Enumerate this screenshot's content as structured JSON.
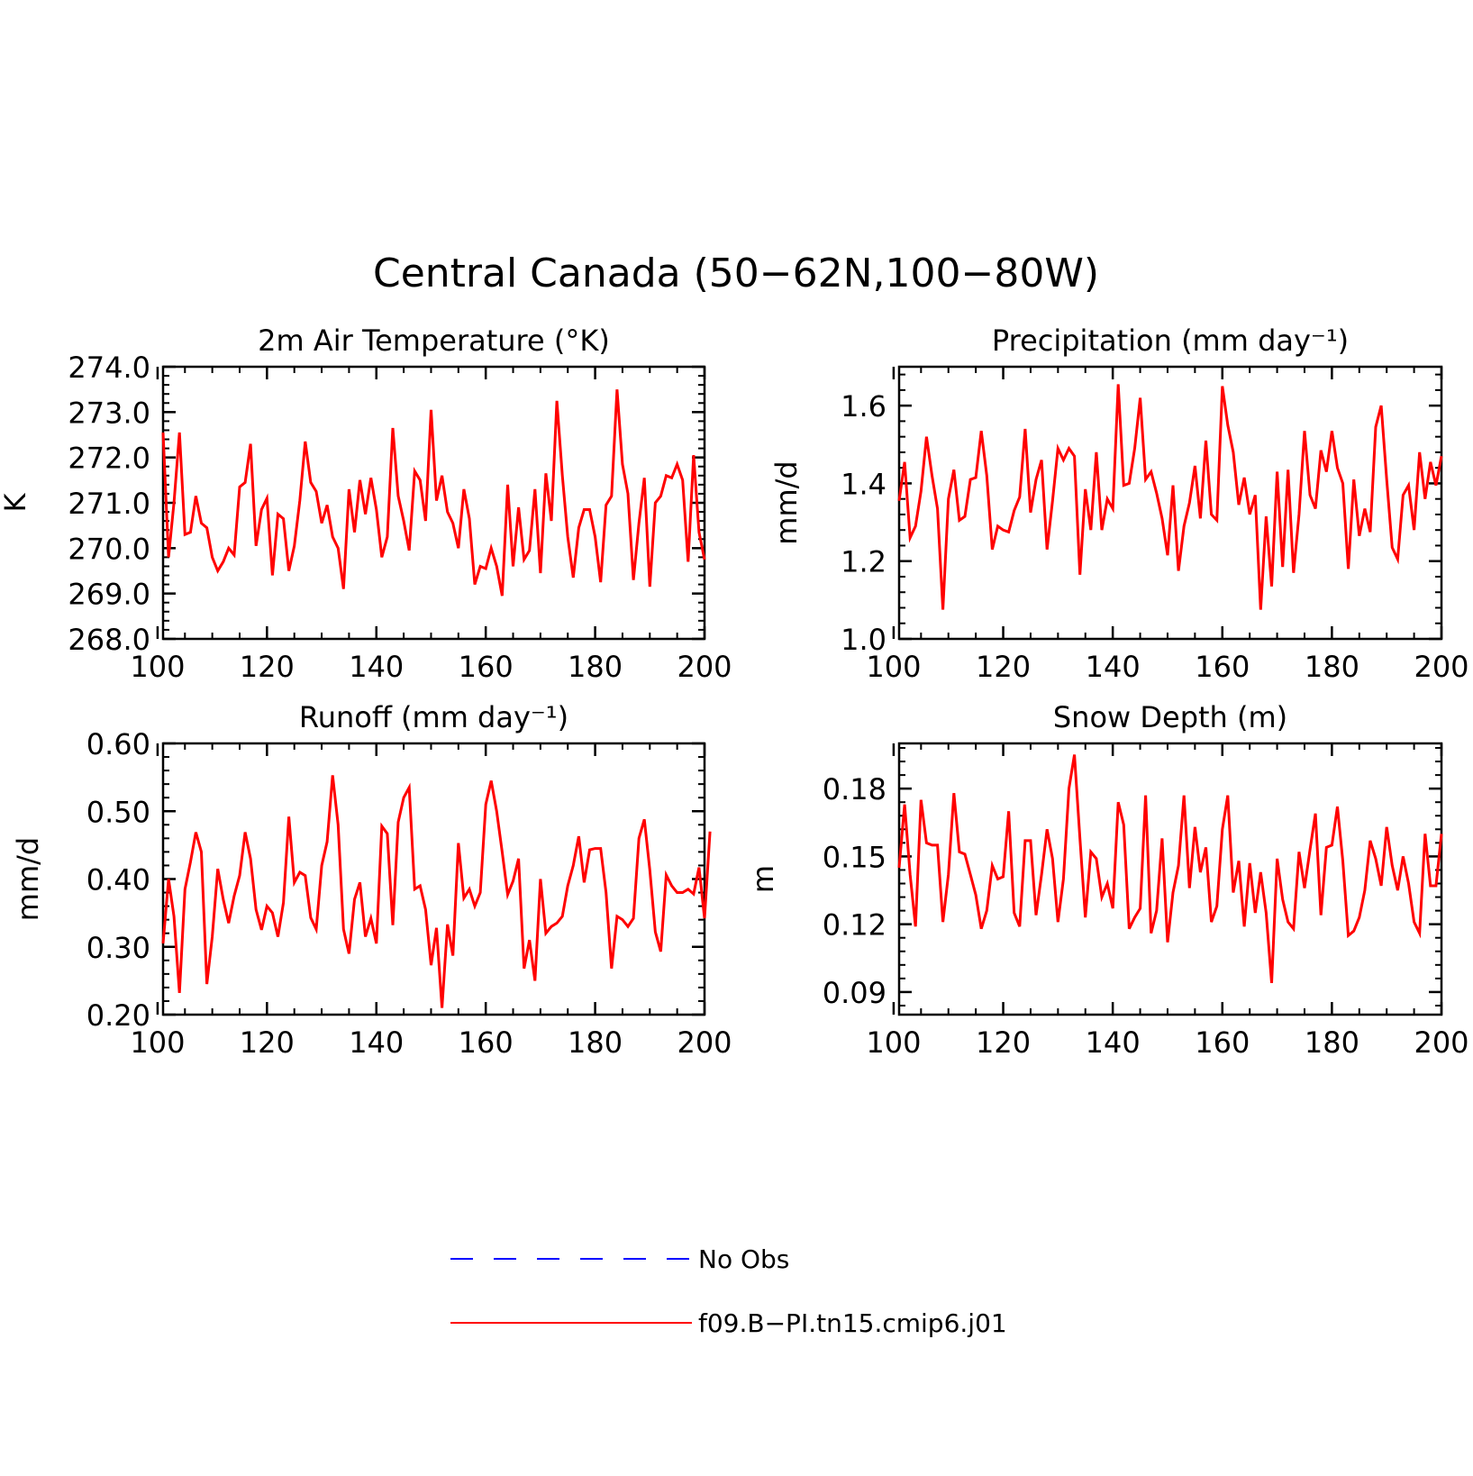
{
  "figure": {
    "title": "Central Canada (50−62N,100−80W)",
    "legend": {
      "entries": [
        {
          "label": "No Obs",
          "color": "#0000ff",
          "dash": true
        },
        {
          "label": "f09.B−PI.tn15.cmip6.j01",
          "color": "#ff0000",
          "dash": false
        }
      ]
    }
  },
  "chart_data": [
    {
      "type": "line",
      "title": "2m Air Temperature (°K)",
      "ylabel": "K",
      "xlim": [
        101,
        200
      ],
      "xticks": [
        100,
        120,
        140,
        160,
        180,
        200
      ],
      "ylim": [
        268.0,
        274.0
      ],
      "yticks": [
        268.0,
        269.0,
        270.0,
        271.0,
        272.0,
        273.0,
        274.0
      ],
      "ytick_labels": [
        "268.0",
        "269.0",
        "270.0",
        "271.0",
        "272.0",
        "273.0",
        "274.0"
      ],
      "series": [
        {
          "color": "#ff0000",
          "x_start": 101,
          "values": [
            272.55,
            269.8,
            271.0,
            272.55,
            270.3,
            270.35,
            271.15,
            270.55,
            270.45,
            269.8,
            269.5,
            269.7,
            270.0,
            269.85,
            271.35,
            271.45,
            272.3,
            270.05,
            270.85,
            271.1,
            269.4,
            270.75,
            270.65,
            269.5,
            270.05,
            271.05,
            272.35,
            271.45,
            271.25,
            270.55,
            270.95,
            270.25,
            270.0,
            269.1,
            271.3,
            270.35,
            271.5,
            270.75,
            271.55,
            270.85,
            269.8,
            270.25,
            272.65,
            271.15,
            270.6,
            269.95,
            271.7,
            271.5,
            270.6,
            273.05,
            271.05,
            271.6,
            270.8,
            270.55,
            270.0,
            271.3,
            270.65,
            269.2,
            269.6,
            269.55,
            270.0,
            269.6,
            268.95,
            271.4,
            269.6,
            270.9,
            269.75,
            269.95,
            271.3,
            269.45,
            271.65,
            270.6,
            273.25,
            271.6,
            270.25,
            269.35,
            270.45,
            270.85,
            270.85,
            270.25,
            269.25,
            270.95,
            271.15,
            273.5,
            271.85,
            271.2,
            269.3,
            270.55,
            271.55,
            269.15,
            271.0,
            271.15,
            271.6,
            271.55,
            271.85,
            271.5,
            269.7,
            272.05,
            270.35,
            269.75
          ]
        }
      ]
    },
    {
      "type": "line",
      "title": "Precipitation (mm day⁻¹)",
      "ylabel": "mm/d",
      "xlim": [
        101,
        200
      ],
      "xticks": [
        100,
        120,
        140,
        160,
        180,
        200
      ],
      "ylim": [
        1.0,
        1.7
      ],
      "yticks": [
        1.0,
        1.2,
        1.4,
        1.6
      ],
      "ytick_labels": [
        "1.0",
        "1.2",
        "1.4",
        "1.6"
      ],
      "series": [
        {
          "color": "#ff0000",
          "x_start": 101,
          "values": [
            1.355,
            1.455,
            1.26,
            1.29,
            1.38,
            1.52,
            1.42,
            1.335,
            1.075,
            1.36,
            1.435,
            1.305,
            1.315,
            1.41,
            1.415,
            1.535,
            1.42,
            1.23,
            1.29,
            1.28,
            1.275,
            1.33,
            1.365,
            1.54,
            1.325,
            1.41,
            1.46,
            1.23,
            1.355,
            1.49,
            1.46,
            1.49,
            1.47,
            1.165,
            1.385,
            1.28,
            1.48,
            1.28,
            1.36,
            1.335,
            1.655,
            1.395,
            1.4,
            1.49,
            1.62,
            1.41,
            1.43,
            1.375,
            1.31,
            1.215,
            1.395,
            1.175,
            1.29,
            1.35,
            1.445,
            1.31,
            1.51,
            1.32,
            1.305,
            1.65,
            1.55,
            1.48,
            1.345,
            1.415,
            1.32,
            1.37,
            1.075,
            1.315,
            1.135,
            1.43,
            1.185,
            1.435,
            1.17,
            1.32,
            1.535,
            1.37,
            1.335,
            1.485,
            1.43,
            1.535,
            1.44,
            1.4,
            1.18,
            1.41,
            1.265,
            1.335,
            1.275,
            1.545,
            1.6,
            1.41,
            1.235,
            1.205,
            1.37,
            1.395,
            1.28,
            1.48,
            1.36,
            1.455,
            1.395,
            1.47
          ]
        }
      ]
    },
    {
      "type": "line",
      "title": "Runoff (mm day⁻¹)",
      "ylabel": "mm/d",
      "xlim": [
        101,
        200
      ],
      "xticks": [
        100,
        120,
        140,
        160,
        180,
        200
      ],
      "ylim": [
        0.2,
        0.6
      ],
      "yticks": [
        0.2,
        0.3,
        0.4,
        0.5,
        0.6
      ],
      "ytick_labels": [
        "0.20",
        "0.30",
        "0.40",
        "0.50",
        "0.60"
      ],
      "series": [
        {
          "color": "#ff0000",
          "x_start": 101,
          "values": [
            0.305,
            0.4,
            0.345,
            0.232,
            0.385,
            0.425,
            0.469,
            0.44,
            0.245,
            0.315,
            0.415,
            0.37,
            0.335,
            0.375,
            0.405,
            0.469,
            0.43,
            0.355,
            0.325,
            0.36,
            0.35,
            0.315,
            0.365,
            0.492,
            0.395,
            0.41,
            0.405,
            0.343,
            0.326,
            0.42,
            0.455,
            0.553,
            0.48,
            0.326,
            0.29,
            0.37,
            0.395,
            0.315,
            0.342,
            0.305,
            0.478,
            0.467,
            0.332,
            0.484,
            0.52,
            0.535,
            0.385,
            0.39,
            0.355,
            0.273,
            0.328,
            0.21,
            0.333,
            0.287,
            0.453,
            0.372,
            0.385,
            0.36,
            0.38,
            0.51,
            0.545,
            0.5,
            0.44,
            0.377,
            0.397,
            0.43,
            0.268,
            0.31,
            0.25,
            0.4,
            0.32,
            0.33,
            0.335,
            0.345,
            0.39,
            0.42,
            0.463,
            0.395,
            0.443,
            0.445,
            0.445,
            0.38,
            0.268,
            0.345,
            0.34,
            0.33,
            0.342,
            0.46,
            0.488,
            0.413,
            0.322,
            0.293,
            0.406,
            0.39,
            0.38,
            0.38,
            0.385,
            0.378,
            0.417,
            0.342,
            0.47
          ]
        }
      ]
    },
    {
      "type": "line",
      "title": "Snow Depth (m)",
      "ylabel": "m",
      "xlim": [
        101,
        200
      ],
      "xticks": [
        100,
        120,
        140,
        160,
        180,
        200
      ],
      "ylim": [
        0.08,
        0.2
      ],
      "yticks": [
        0.09,
        0.12,
        0.15,
        0.18
      ],
      "ytick_labels": [
        "0.09",
        "0.12",
        "0.15",
        "0.18"
      ],
      "series": [
        {
          "color": "#ff0000",
          "x_start": 101,
          "values": [
            0.145,
            0.173,
            0.142,
            0.119,
            0.175,
            0.156,
            0.155,
            0.155,
            0.121,
            0.142,
            0.178,
            0.152,
            0.151,
            0.142,
            0.133,
            0.118,
            0.126,
            0.146,
            0.14,
            0.141,
            0.17,
            0.125,
            0.119,
            0.157,
            0.157,
            0.124,
            0.142,
            0.162,
            0.149,
            0.121,
            0.14,
            0.18,
            0.195,
            0.158,
            0.123,
            0.152,
            0.149,
            0.132,
            0.138,
            0.127,
            0.174,
            0.164,
            0.118,
            0.123,
            0.127,
            0.177,
            0.116,
            0.126,
            0.158,
            0.112,
            0.134,
            0.146,
            0.177,
            0.136,
            0.163,
            0.143,
            0.154,
            0.121,
            0.128,
            0.162,
            0.177,
            0.134,
            0.148,
            0.119,
            0.147,
            0.125,
            0.143,
            0.125,
            0.094,
            0.149,
            0.131,
            0.121,
            0.118,
            0.152,
            0.136,
            0.153,
            0.169,
            0.124,
            0.154,
            0.155,
            0.172,
            0.148,
            0.115,
            0.117,
            0.123,
            0.135,
            0.157,
            0.149,
            0.137,
            0.163,
            0.146,
            0.135,
            0.15,
            0.138,
            0.121,
            0.116,
            0.16,
            0.137,
            0.137,
            0.16
          ]
        }
      ]
    }
  ]
}
